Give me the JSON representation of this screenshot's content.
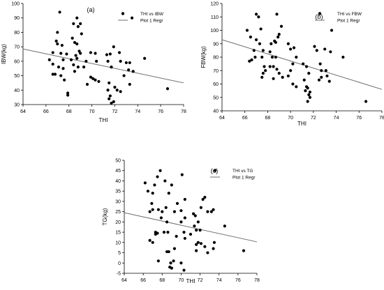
{
  "chart_data": [
    {
      "type": "scatter",
      "panel_label": "(a)",
      "xlabel": "THI",
      "ylabel": "IBW(kg)",
      "xlim": [
        64,
        78
      ],
      "ylim": [
        30,
        100
      ],
      "xticks": [
        64,
        66,
        68,
        70,
        72,
        74,
        76,
        78
      ],
      "yticks": [
        30,
        40,
        50,
        60,
        70,
        80,
        90,
        100
      ],
      "legend": {
        "position": "top-right",
        "scatter_label": "THI vs IBW",
        "line_label": "Plot 1 Regr"
      },
      "series": [
        {
          "name": "THI vs IBW",
          "points": [
            [
              67.2,
              94.0
            ],
            [
              67.0,
              80.0
            ],
            [
              67.4,
              71.0
            ],
            [
              66.9,
              74.0
            ],
            [
              67.0,
              72.0
            ],
            [
              66.6,
              66.0
            ],
            [
              67.3,
              65.5
            ],
            [
              67.8,
              65.0
            ],
            [
              67.5,
              61.0
            ],
            [
              66.3,
              61.0
            ],
            [
              66.6,
              58.0
            ],
            [
              67.1,
              56.0
            ],
            [
              67.5,
              55.0
            ],
            [
              66.6,
              51.0
            ],
            [
              66.8,
              51.0
            ],
            [
              67.3,
              50.0
            ],
            [
              67.6,
              47.0
            ],
            [
              67.9,
              38.0
            ],
            [
              67.9,
              36.5
            ],
            [
              68.3,
              76.0
            ],
            [
              68.4,
              86.0
            ],
            [
              68.7,
              90.0
            ],
            [
              68.8,
              84.0
            ],
            [
              69.0,
              86.0
            ],
            [
              69.1,
              79.0
            ],
            [
              68.5,
              73.0
            ],
            [
              68.7,
              72.0
            ],
            [
              68.9,
              67.0
            ],
            [
              69.0,
              65.5
            ],
            [
              68.6,
              64.0
            ],
            [
              68.2,
              61.0
            ],
            [
              68.7,
              62.0
            ],
            [
              68.4,
              57.5
            ],
            [
              68.8,
              56.0
            ],
            [
              69.3,
              56.0
            ],
            [
              68.5,
              53.0
            ],
            [
              69.5,
              60.0
            ],
            [
              69.9,
              66.0
            ],
            [
              70.3,
              65.5
            ],
            [
              70.4,
              60.0
            ],
            [
              69.6,
              44.0
            ],
            [
              69.9,
              49.0
            ],
            [
              70.1,
              48.0
            ],
            [
              70.3,
              47.0
            ],
            [
              70.6,
              46.0
            ],
            [
              71.3,
              64.5
            ],
            [
              71.6,
              65.0
            ],
            [
              71.9,
              70.0
            ],
            [
              71.4,
              60.0
            ],
            [
              71.7,
              56.0
            ],
            [
              71.5,
              45.0
            ],
            [
              72.4,
              66.0
            ],
            [
              72.5,
              60.0
            ],
            [
              73.0,
              59.0
            ],
            [
              73.3,
              59.0
            ],
            [
              73.5,
              90.0
            ],
            [
              73.2,
              54.0
            ],
            [
              72.8,
              50.0
            ],
            [
              73.6,
              53.0
            ],
            [
              73.3,
              44.0
            ],
            [
              72.0,
              42.0
            ],
            [
              71.4,
              40.0
            ],
            [
              72.2,
              40.0
            ],
            [
              72.5,
              39.0
            ],
            [
              71.6,
              36.0
            ],
            [
              71.5,
              34.0
            ],
            [
              71.7,
              31.0
            ],
            [
              71.9,
              32.0
            ],
            [
              74.6,
              62.0
            ],
            [
              76.6,
              41.0
            ]
          ]
        }
      ],
      "regression": {
        "x": [
          64,
          78
        ],
        "y": [
          68.5,
          45.0
        ]
      }
    },
    {
      "type": "scatter",
      "panel_label": "(b)",
      "xlabel": "THI",
      "ylabel": "FBW(kg)",
      "xlim": [
        64,
        78
      ],
      "ylim": [
        40,
        120
      ],
      "xticks": [
        64,
        66,
        68,
        70,
        72,
        74,
        76,
        78
      ],
      "yticks": [
        40,
        50,
        60,
        70,
        80,
        90,
        100,
        110,
        120
      ],
      "legend": {
        "position": "top-right",
        "scatter_label": "THI vs FBW",
        "line_label": "Plot 1 Regr"
      },
      "series": [
        {
          "name": "THI vs FBW",
          "points": [
            [
              67.0,
              112.0
            ],
            [
              67.2,
              110.0
            ],
            [
              68.8,
              112.0
            ],
            [
              66.2,
              100.0
            ],
            [
              67.4,
              101.0
            ],
            [
              66.5,
              95.0
            ],
            [
              67.0,
              93.0
            ],
            [
              67.3,
              90.0
            ],
            [
              67.6,
              85.0
            ],
            [
              66.8,
              85.0
            ],
            [
              67.5,
              80.0
            ],
            [
              66.9,
              80.0
            ],
            [
              66.4,
              77.0
            ],
            [
              66.6,
              78.0
            ],
            [
              67.7,
              73.0
            ],
            [
              67.6,
              68.0
            ],
            [
              67.5,
              65.0
            ],
            [
              67.8,
              70.0
            ],
            [
              68.3,
              90.0
            ],
            [
              68.6,
              92.0
            ],
            [
              68.7,
              91.0
            ],
            [
              69.0,
              97.0
            ],
            [
              69.2,
              103.0
            ],
            [
              68.9,
              95.0
            ],
            [
              68.2,
              84.0
            ],
            [
              68.4,
              80.0
            ],
            [
              68.7,
              80.0
            ],
            [
              68.2,
              73.0
            ],
            [
              68.5,
              73.0
            ],
            [
              68.8,
              71.0
            ],
            [
              69.0,
              68.0
            ],
            [
              68.5,
              64.0
            ],
            [
              69.3,
              65.0
            ],
            [
              69.8,
              90.0
            ],
            [
              70.0,
              86.0
            ],
            [
              70.3,
              87.0
            ],
            [
              70.5,
              80.0
            ],
            [
              70.2,
              75.0
            ],
            [
              70.0,
              70.0
            ],
            [
              69.8,
              66.0
            ],
            [
              70.2,
              60.0
            ],
            [
              70.5,
              58.0
            ],
            [
              71.2,
              63.0
            ],
            [
              71.1,
              75.0
            ],
            [
              71.4,
              73.0
            ],
            [
              71.6,
              68.0
            ],
            [
              71.4,
              58.0
            ],
            [
              71.5,
              57.0
            ],
            [
              71.3,
              55.0
            ],
            [
              71.7,
              54.0
            ],
            [
              71.6,
              52.0
            ],
            [
              71.5,
              47.0
            ],
            [
              71.7,
              50.0
            ],
            [
              72.1,
              88.0
            ],
            [
              72.3,
              85.0
            ],
            [
              72.6,
              75.0
            ],
            [
              72.7,
              70.0
            ],
            [
              72.5,
              63.0
            ],
            [
              72.7,
              65.0
            ],
            [
              73.1,
              70.0
            ],
            [
              73.2,
              66.0
            ],
            [
              73.4,
              62.0
            ],
            [
              73.5,
              84.0
            ],
            [
              73.6,
              100.0
            ],
            [
              73.0,
              86.0
            ],
            [
              74.6,
              80.0
            ],
            [
              76.6,
              47.0
            ]
          ]
        }
      ],
      "regression": {
        "x": [
          64,
          78
        ],
        "y": [
          93.0,
          56.0
        ]
      }
    },
    {
      "type": "scatter",
      "panel_label": "(c)",
      "xlabel": "THI",
      "ylabel": "TG(kg)",
      "xlim": [
        64,
        78
      ],
      "ylim": [
        -5,
        50
      ],
      "xticks": [
        64,
        66,
        68,
        70,
        72,
        74,
        76,
        78
      ],
      "yticks": [
        -5,
        0,
        5,
        10,
        15,
        20,
        25,
        30,
        35,
        40,
        45,
        50
      ],
      "legend": {
        "position": "top-right",
        "scatter_label": "THI vs TG",
        "line_label": "Plot 1 Regr"
      },
      "series": [
        {
          "name": "THI vs TG",
          "points": [
            [
              66.2,
              39.0
            ],
            [
              66.5,
              35.0
            ],
            [
              67.0,
              34.0
            ],
            [
              66.9,
              29.0
            ],
            [
              67.5,
              42.0
            ],
            [
              67.2,
              38.0
            ],
            [
              67.8,
              45.0
            ],
            [
              68.3,
              40.0
            ],
            [
              68.7,
              34.0
            ],
            [
              69.0,
              38.0
            ],
            [
              67.0,
              26.0
            ],
            [
              66.7,
              25.0
            ],
            [
              67.6,
              26.0
            ],
            [
              68.0,
              25.0
            ],
            [
              68.4,
              27.0
            ],
            [
              67.9,
              22.0
            ],
            [
              68.5,
              20.0
            ],
            [
              66.7,
              11.0
            ],
            [
              67.0,
              10.0
            ],
            [
              67.3,
              14.0
            ],
            [
              67.5,
              14.5
            ],
            [
              67.3,
              15.0
            ],
            [
              68.2,
              15.0
            ],
            [
              68.6,
              15.0
            ],
            [
              67.6,
              1.0
            ],
            [
              68.5,
              5.5
            ],
            [
              68.7,
              5.5
            ],
            [
              68.9,
              0.0
            ],
            [
              69.2,
              1.0
            ],
            [
              68.8,
              -2.0
            ],
            [
              69.0,
              -2.5
            ],
            [
              69.3,
              7.0
            ],
            [
              69.5,
              13.0
            ],
            [
              69.3,
              25.0
            ],
            [
              69.6,
              29.0
            ],
            [
              70.1,
              43.0
            ],
            [
              70.4,
              31.0
            ],
            [
              70.0,
              25.5
            ],
            [
              70.4,
              22.0
            ],
            [
              70.0,
              20.0
            ],
            [
              70.3,
              15.0
            ],
            [
              70.4,
              12.0
            ],
            [
              70.0,
              0.0
            ],
            [
              70.3,
              -3.5
            ],
            [
              71.0,
              14.0
            ],
            [
              71.4,
              18.0
            ],
            [
              71.6,
              16.0
            ],
            [
              71.3,
              24.0
            ],
            [
              71.5,
              23.0
            ],
            [
              71.8,
              20.0
            ],
            [
              72.0,
              16.0
            ],
            [
              71.6,
              9.0
            ],
            [
              71.8,
              10.0
            ],
            [
              72.1,
              9.5
            ],
            [
              72.5,
              8.0
            ],
            [
              72.8,
              5.0
            ],
            [
              71.6,
              6.0
            ],
            [
              72.3,
              31.0
            ],
            [
              72.5,
              32.0
            ],
            [
              72.8,
              25.0
            ],
            [
              72.1,
              27.0
            ],
            [
              73.2,
              25.0
            ],
            [
              73.4,
              26.0
            ],
            [
              73.5,
              10.0
            ],
            [
              73.4,
              7.0
            ],
            [
              74.6,
              18.0
            ],
            [
              76.6,
              6.0
            ]
          ]
        }
      ],
      "regression": {
        "x": [
          64,
          78
        ],
        "y": [
          24.5,
          10.3
        ]
      }
    }
  ]
}
